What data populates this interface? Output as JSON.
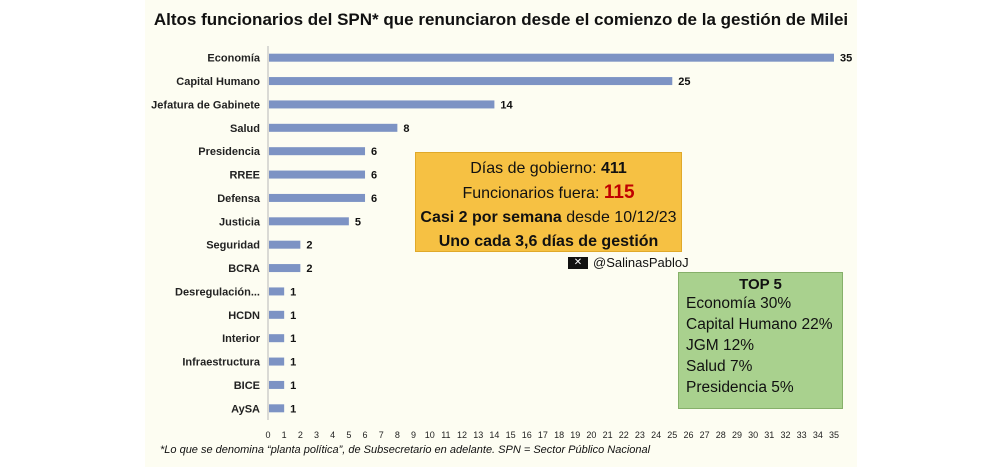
{
  "chart_data": {
    "type": "bar",
    "orientation": "horizontal",
    "title": "Altos funcionarios del SPN* que renunciaron desde el comienzo de la gestión de Milei",
    "categories": [
      "Economía",
      "Capital Humano",
      "Jefatura de Gabinete",
      "Salud",
      "Presidencia",
      "RREE",
      "Defensa",
      "Justicia",
      "Seguridad",
      "BCRA",
      "Desregulación...",
      "HCDN",
      "Interior",
      "Infraestructura",
      "BICE",
      "AySA"
    ],
    "values": [
      35,
      25,
      14,
      8,
      6,
      6,
      6,
      5,
      2,
      2,
      1,
      1,
      1,
      1,
      1,
      1
    ],
    "xlim": [
      0,
      35
    ],
    "xticks": [
      0,
      1,
      2,
      3,
      4,
      5,
      6,
      7,
      8,
      9,
      10,
      11,
      12,
      13,
      14,
      15,
      16,
      17,
      18,
      19,
      20,
      21,
      22,
      23,
      24,
      25,
      26,
      27,
      28,
      29,
      30,
      31,
      32,
      33,
      34,
      35
    ],
    "bar_color": "#7d93c4",
    "grid": false
  },
  "info_box": {
    "line1_label": "Días de gobierno: ",
    "line1_value": "411",
    "line2_label": "Funcionarios fuera: ",
    "line2_value": "115",
    "line3_bold": "Casi 2 por semana",
    "line3_rest": " desde 10/12/23",
    "line4": "Uno cada 3,6 días de gestión",
    "bg_color": "#f6c143",
    "highlight_color": "#c00000"
  },
  "attribution": {
    "icon": "x-logo-icon",
    "glyph": "✕",
    "handle": "@SalinasPabloJ"
  },
  "top5": {
    "title": "TOP 5",
    "items": [
      "Economía 30%",
      "Capital Humano 22%",
      "JGM 12%",
      "Salud 7%",
      "Presidencia 5%"
    ],
    "bg_color": "#a9d18e"
  },
  "footnote": "*Lo que se denomina “planta política”, de Subsecretario en adelante. SPN = Sector Público Nacional"
}
